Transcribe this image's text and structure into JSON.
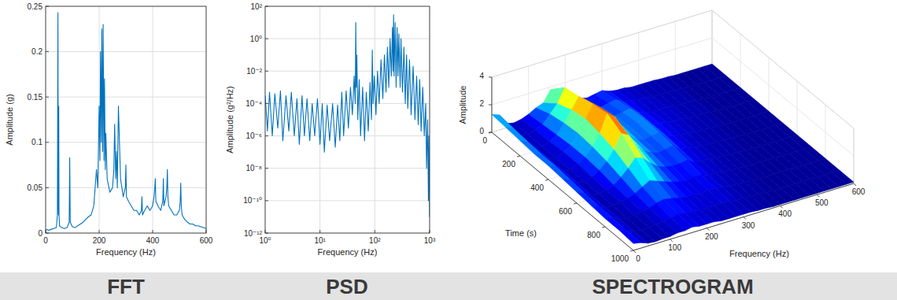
{
  "chart_data": [
    {
      "type": "line",
      "title": "FFT",
      "xlabel": "Frequency (Hz)",
      "ylabel": "Amplitude (g)",
      "x": [
        0,
        5,
        10,
        20,
        30,
        40,
        44,
        46,
        47,
        48,
        49,
        50,
        52,
        60,
        70,
        80,
        88,
        90,
        92,
        100,
        110,
        120,
        130,
        140,
        150,
        160,
        170,
        180,
        185,
        190,
        195,
        200,
        203,
        205,
        208,
        210,
        213,
        215,
        218,
        220,
        223,
        225,
        230,
        240,
        250,
        255,
        258,
        262,
        265,
        268,
        272,
        280,
        290,
        298,
        300,
        302,
        310,
        320,
        330,
        340,
        350,
        358,
        360,
        362,
        370,
        380,
        390,
        400,
        405,
        408,
        410,
        412,
        420,
        430,
        438,
        440,
        442,
        450,
        453,
        455,
        457,
        460,
        470,
        480,
        490,
        500,
        503,
        505,
        507,
        510,
        520,
        530,
        540,
        550,
        560,
        570,
        580,
        590,
        600
      ],
      "values": [
        0.003,
        0.004,
        0.003,
        0.004,
        0.005,
        0.006,
        0.02,
        0.243,
        0.03,
        0.02,
        0.14,
        0.02,
        0.008,
        0.006,
        0.005,
        0.006,
        0.012,
        0.083,
        0.012,
        0.007,
        0.006,
        0.008,
        0.01,
        0.012,
        0.015,
        0.018,
        0.02,
        0.03,
        0.05,
        0.07,
        0.05,
        0.14,
        0.08,
        0.2,
        0.1,
        0.225,
        0.09,
        0.23,
        0.08,
        0.17,
        0.07,
        0.11,
        0.06,
        0.045,
        0.05,
        0.07,
        0.12,
        0.06,
        0.09,
        0.05,
        0.14,
        0.06,
        0.04,
        0.05,
        0.075,
        0.04,
        0.035,
        0.03,
        0.025,
        0.025,
        0.02,
        0.025,
        0.04,
        0.02,
        0.025,
        0.03,
        0.025,
        0.03,
        0.04,
        0.05,
        0.06,
        0.035,
        0.03,
        0.025,
        0.035,
        0.06,
        0.03,
        0.04,
        0.05,
        0.07,
        0.04,
        0.03,
        0.025,
        0.02,
        0.02,
        0.025,
        0.035,
        0.055,
        0.03,
        0.02,
        0.015,
        0.012,
        0.01,
        0.01,
        0.008,
        0.008,
        0.007,
        0.006,
        0.005
      ],
      "color": "#0072bd",
      "xlim": [
        0,
        600
      ],
      "xticks": [
        0,
        200,
        400,
        600
      ],
      "ylim": [
        0,
        0.25
      ],
      "yticks": [
        0,
        0.05,
        0.1,
        0.15,
        0.2,
        0.25
      ],
      "grid": true
    },
    {
      "type": "line",
      "title": "PSD",
      "xlabel": "Frequency (Hz)",
      "ylabel": "Amplitude (g²/Hz)",
      "x": [
        1,
        1.1,
        1.2,
        1.35,
        1.5,
        1.7,
        1.9,
        2.1,
        2.4,
        2.7,
        3,
        3.4,
        3.8,
        4.2,
        4.7,
        5.2,
        5.8,
        6.5,
        7.2,
        8,
        9,
        10,
        11,
        12,
        13.5,
        15,
        17,
        19,
        21,
        23,
        25,
        27,
        30,
        33,
        36,
        39,
        42,
        44,
        45,
        46,
        47,
        49,
        52,
        55,
        60,
        65,
        70,
        76,
        82,
        87,
        90,
        93,
        98,
        105,
        112,
        120,
        130,
        140,
        150,
        160,
        170,
        180,
        190,
        200,
        210,
        215,
        220,
        225,
        235,
        245,
        255,
        265,
        275,
        290,
        300,
        320,
        340,
        360,
        380,
        400,
        430,
        460,
        500,
        540,
        580,
        620,
        660,
        700,
        750,
        800,
        850,
        880,
        920,
        950,
        970,
        1000
      ],
      "values": [
        0.0003,
        2e-06,
        0.0005,
        1e-06,
        0.0004,
        3e-06,
        0.0006,
        5e-07,
        0.0003,
        2e-06,
        0.0005,
        1e-06,
        0.0002,
        3e-07,
        0.0003,
        1e-06,
        0.0002,
        5e-07,
        0.0001,
        1e-06,
        0.0002,
        3e-07,
        0.0001,
        1e-07,
        8e-05,
        5e-07,
        0.0001,
        2e-07,
        8e-05,
        5e-07,
        0.0005,
        1e-06,
        0.0006,
        3e-06,
        0.001,
        2e-05,
        0.005,
        0.0001,
        10,
        0.001,
        0.1,
        1e-05,
        0.003,
        1e-06,
        0.001,
        5e-07,
        0.0005,
        2e-06,
        0.002,
        1e-05,
        0.2,
        0.0001,
        0.005,
        2e-05,
        0.01,
        0.0001,
        0.05,
        0.0002,
        0.1,
        0.0005,
        0.3,
        0.001,
        1,
        0.005,
        5,
        0.01,
        30,
        0.005,
        10,
        0.001,
        5,
        0.005,
        2,
        0.001,
        1,
        0.0005,
        0.3,
        0.0001,
        0.1,
        5e-05,
        0.05,
        2e-05,
        0.02,
        1e-05,
        0.005,
        5e-06,
        0.003,
        2e-06,
        0.001,
        1e-06,
        0.0001,
        1e-08,
        1e-05,
        1e-10,
        1e-06,
        1e-11
      ],
      "color": "#0072bd",
      "log": true,
      "xlim": [
        1,
        1000
      ],
      "xticks": [
        {
          "value": 1,
          "label": "10⁰"
        },
        {
          "value": 10,
          "label": "10¹"
        },
        {
          "value": 100,
          "label": "10²"
        },
        {
          "value": 1000,
          "label": "10³"
        }
      ],
      "ylim": [
        1e-12,
        100
      ],
      "yticks": [
        {
          "value": 1e-12,
          "label": "10⁻¹²"
        },
        {
          "value": 1e-10,
          "label": "10⁻¹⁰"
        },
        {
          "value": 1e-08,
          "label": "10⁻⁸"
        },
        {
          "value": 1e-06,
          "label": "10⁻⁶"
        },
        {
          "value": 0.0001,
          "label": "10⁻⁴"
        },
        {
          "value": 0.01,
          "label": "10⁻²"
        },
        {
          "value": 1,
          "label": "10⁰"
        },
        {
          "value": 100,
          "label": "10²"
        }
      ],
      "grid": true
    },
    {
      "type": "surface",
      "title": "SPECTROGRAM",
      "xlabel": "Frequency (Hz)",
      "ylabel": "Time (s)",
      "zlabel": "Amplitude",
      "x": [
        0,
        20,
        40,
        60,
        80,
        100,
        120,
        140,
        160,
        180,
        200,
        220,
        240,
        260,
        280,
        300,
        320,
        340,
        360,
        380,
        400,
        420,
        440,
        460,
        480,
        500,
        520,
        540,
        560,
        580,
        600
      ],
      "y": [
        0,
        100,
        200,
        300,
        400,
        500,
        600,
        700,
        800,
        900,
        1000
      ],
      "z": [
        [
          1.3,
          1.1,
          0.3,
          0.2,
          0.3,
          0.5,
          0.8,
          1.0,
          1.8,
          1.2,
          0.9,
          0.6,
          0.5,
          0.4,
          0.5,
          0.6,
          0.4,
          0.3,
          0.3,
          0.2,
          0.2,
          0.2,
          0.2,
          0.15,
          0.15,
          0.1,
          0.1,
          0.1,
          0.1,
          0.1,
          0.1
        ],
        [
          1.2,
          1.0,
          0.3,
          0.2,
          0.4,
          0.6,
          1.2,
          1.8,
          2.8,
          2.0,
          1.4,
          1.0,
          0.8,
          0.6,
          0.7,
          0.8,
          0.5,
          0.4,
          0.3,
          0.3,
          0.2,
          0.2,
          0.2,
          0.2,
          0.15,
          0.1,
          0.1,
          0.1,
          0.1,
          0.1,
          0.1
        ],
        [
          1.1,
          0.9,
          0.3,
          0.2,
          0.4,
          0.7,
          1.4,
          2.2,
          3.0,
          2.6,
          1.8,
          1.3,
          1.0,
          0.8,
          0.9,
          1.0,
          0.6,
          0.4,
          0.3,
          0.3,
          0.3,
          0.2,
          0.2,
          0.2,
          0.15,
          0.1,
          0.1,
          0.1,
          0.1,
          0.1,
          0.1
        ],
        [
          1.0,
          0.8,
          0.3,
          0.2,
          0.5,
          0.8,
          1.5,
          2.4,
          3.3,
          2.9,
          2.0,
          1.5,
          1.1,
          0.9,
          1.0,
          1.1,
          0.6,
          0.5,
          0.4,
          0.3,
          0.3,
          0.2,
          0.2,
          0.2,
          0.15,
          0.1,
          0.1,
          0.1,
          0.1,
          0.1,
          0.1
        ],
        [
          1.0,
          0.8,
          0.3,
          0.2,
          0.5,
          0.8,
          1.4,
          2.2,
          3.5,
          3.1,
          2.2,
          1.4,
          1.0,
          0.8,
          0.9,
          1.0,
          0.6,
          0.4,
          0.3,
          0.3,
          0.2,
          0.2,
          0.2,
          0.15,
          0.1,
          0.1,
          0.1,
          0.1,
          0.1,
          0.1,
          0.1
        ],
        [
          0.9,
          0.7,
          0.3,
          0.2,
          0.4,
          0.7,
          1.2,
          1.9,
          2.9,
          2.6,
          1.8,
          1.2,
          0.9,
          0.7,
          0.8,
          0.9,
          0.5,
          0.4,
          0.3,
          0.2,
          0.2,
          0.2,
          0.15,
          0.15,
          0.1,
          0.1,
          0.1,
          0.1,
          0.1,
          0.1,
          0.1
        ],
        [
          0.8,
          0.6,
          0.2,
          0.2,
          0.3,
          0.5,
          0.9,
          1.4,
          2.0,
          1.8,
          1.3,
          0.9,
          0.7,
          0.6,
          0.6,
          0.7,
          0.4,
          0.3,
          0.3,
          0.2,
          0.2,
          0.15,
          0.15,
          0.1,
          0.1,
          0.1,
          0.1,
          0.1,
          0.1,
          0.1,
          0.1
        ],
        [
          0.7,
          0.5,
          0.2,
          0.2,
          0.3,
          0.4,
          0.6,
          0.9,
          1.2,
          1.0,
          0.8,
          0.6,
          0.5,
          0.4,
          0.5,
          0.5,
          0.3,
          0.3,
          0.2,
          0.2,
          0.15,
          0.15,
          0.1,
          0.1,
          0.1,
          0.1,
          0.1,
          0.1,
          0.1,
          0.1,
          0.1
        ],
        [
          0.6,
          0.5,
          0.2,
          0.15,
          0.2,
          0.3,
          0.4,
          0.6,
          0.7,
          0.6,
          0.5,
          0.4,
          0.4,
          0.3,
          0.4,
          0.4,
          0.3,
          0.2,
          0.2,
          0.15,
          0.15,
          0.1,
          0.1,
          0.1,
          0.1,
          0.1,
          0.1,
          0.1,
          0.1,
          0.1,
          0.1
        ],
        [
          0.6,
          0.4,
          0.2,
          0.15,
          0.2,
          0.2,
          0.3,
          0.4,
          0.5,
          0.4,
          0.4,
          0.3,
          0.3,
          0.3,
          0.3,
          0.3,
          0.2,
          0.2,
          0.15,
          0.15,
          0.1,
          0.1,
          0.1,
          0.1,
          0.1,
          0.1,
          0.1,
          0.1,
          0.1,
          0.1,
          0.1
        ],
        [
          0.5,
          0.4,
          0.2,
          0.15,
          0.2,
          0.2,
          0.3,
          0.3,
          0.4,
          0.3,
          0.3,
          0.3,
          0.2,
          0.2,
          0.2,
          0.2,
          0.2,
          0.15,
          0.15,
          0.1,
          0.1,
          0.1,
          0.1,
          0.1,
          0.1,
          0.1,
          0.1,
          0.1,
          0.1,
          0.1,
          0.1
        ]
      ],
      "xlim": [
        0,
        600
      ],
      "xticks": [
        0,
        100,
        200,
        300,
        400,
        500,
        600
      ],
      "ylim": [
        0,
        1000
      ],
      "yticks": [
        0,
        200,
        400,
        600,
        800,
        1000
      ],
      "zlim": [
        0,
        4
      ],
      "zticks": [
        0,
        2,
        4
      ],
      "grid": true
    }
  ]
}
